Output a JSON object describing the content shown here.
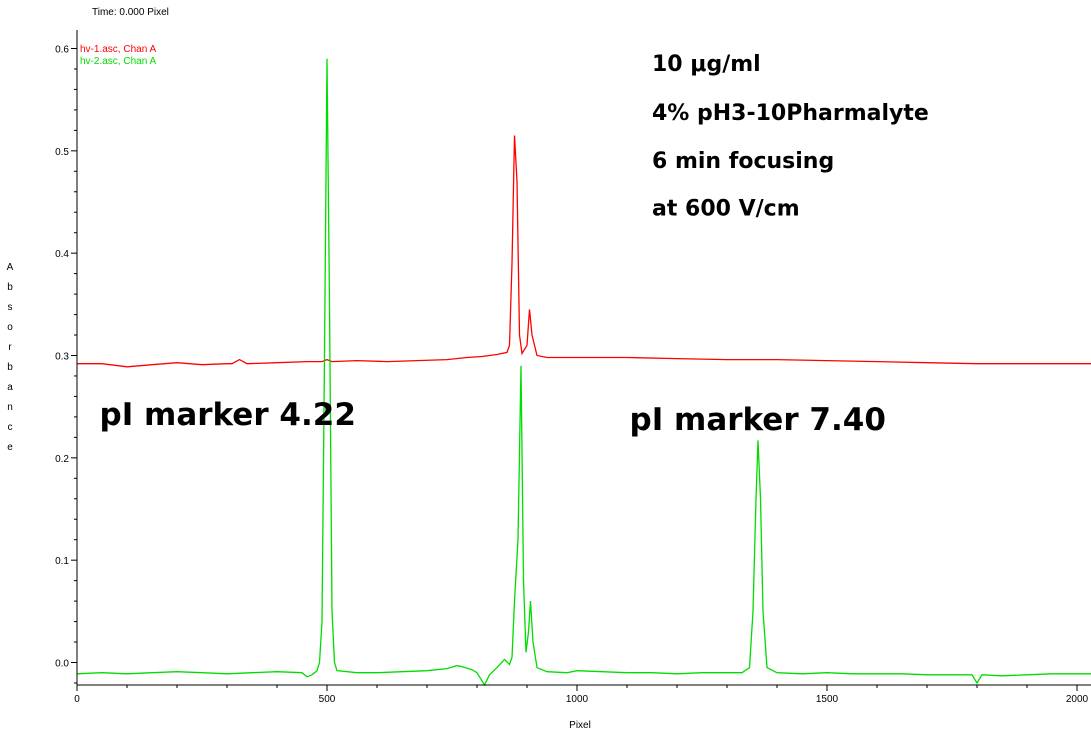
{
  "header": {
    "time_readout": "Time:  0.000 Pixel"
  },
  "chart_data": {
    "type": "line",
    "xlabel": "Pixel",
    "ylabel": "Absorbance",
    "xlim": [
      0,
      2050
    ],
    "ylim": [
      -0.03,
      0.61
    ],
    "x_ticks": [
      0,
      500,
      1000,
      1500,
      2000
    ],
    "x_tick_labels": [
      "0",
      "500",
      "1000",
      "1500",
      "2000"
    ],
    "y_ticks": [
      0.0,
      0.1,
      0.2,
      0.3,
      0.4,
      0.5,
      0.6
    ],
    "y_tick_labels": [
      "0.0",
      "0.1",
      "0.2",
      "0.3",
      "0.4",
      "0.5",
      "0.6"
    ],
    "grid": false,
    "legend": {
      "placement": "top-left"
    },
    "series": [
      {
        "name": "hv-1.asc, Chan A",
        "color": "#ff0000",
        "points": [
          [
            0,
            0.292
          ],
          [
            50,
            0.292
          ],
          [
            100,
            0.289
          ],
          [
            150,
            0.291
          ],
          [
            200,
            0.293
          ],
          [
            250,
            0.291
          ],
          [
            300,
            0.292
          ],
          [
            310,
            0.292
          ],
          [
            325,
            0.296
          ],
          [
            340,
            0.292
          ],
          [
            400,
            0.293
          ],
          [
            460,
            0.294
          ],
          [
            490,
            0.294
          ],
          [
            500,
            0.296
          ],
          [
            510,
            0.294
          ],
          [
            560,
            0.295
          ],
          [
            620,
            0.294
          ],
          [
            680,
            0.295
          ],
          [
            740,
            0.296
          ],
          [
            780,
            0.298
          ],
          [
            810,
            0.299
          ],
          [
            840,
            0.301
          ],
          [
            860,
            0.303
          ],
          [
            865,
            0.31
          ],
          [
            870,
            0.39
          ],
          [
            875,
            0.515
          ],
          [
            880,
            0.47
          ],
          [
            885,
            0.32
          ],
          [
            890,
            0.302
          ],
          [
            900,
            0.31
          ],
          [
            905,
            0.345
          ],
          [
            910,
            0.32
          ],
          [
            920,
            0.3
          ],
          [
            940,
            0.298
          ],
          [
            1000,
            0.298
          ],
          [
            1100,
            0.298
          ],
          [
            1200,
            0.297
          ],
          [
            1300,
            0.296
          ],
          [
            1400,
            0.296
          ],
          [
            1500,
            0.295
          ],
          [
            1600,
            0.294
          ],
          [
            1700,
            0.293
          ],
          [
            1800,
            0.292
          ],
          [
            1900,
            0.292
          ],
          [
            2000,
            0.292
          ],
          [
            2050,
            0.292
          ]
        ]
      },
      {
        "name": "hv-2.asc, Chan A",
        "color": "#00dd00",
        "points": [
          [
            0,
            -0.011
          ],
          [
            50,
            -0.01
          ],
          [
            100,
            -0.011
          ],
          [
            150,
            -0.01
          ],
          [
            200,
            -0.009
          ],
          [
            250,
            -0.01
          ],
          [
            300,
            -0.011
          ],
          [
            350,
            -0.01
          ],
          [
            400,
            -0.009
          ],
          [
            450,
            -0.01
          ],
          [
            460,
            -0.014
          ],
          [
            470,
            -0.012
          ],
          [
            480,
            -0.008
          ],
          [
            485,
            0.0
          ],
          [
            490,
            0.04
          ],
          [
            495,
            0.3
          ],
          [
            500,
            0.59
          ],
          [
            505,
            0.35
          ],
          [
            510,
            0.05
          ],
          [
            515,
            0.0
          ],
          [
            520,
            -0.008
          ],
          [
            560,
            -0.01
          ],
          [
            600,
            -0.01
          ],
          [
            650,
            -0.009
          ],
          [
            700,
            -0.008
          ],
          [
            740,
            -0.006
          ],
          [
            760,
            -0.003
          ],
          [
            770,
            -0.004
          ],
          [
            790,
            -0.007
          ],
          [
            800,
            -0.01
          ],
          [
            815,
            -0.022
          ],
          [
            825,
            -0.012
          ],
          [
            840,
            -0.005
          ],
          [
            855,
            0.003
          ],
          [
            865,
            -0.002
          ],
          [
            870,
            0.005
          ],
          [
            875,
            0.06
          ],
          [
            882,
            0.12
          ],
          [
            888,
            0.29
          ],
          [
            893,
            0.08
          ],
          [
            898,
            0.01
          ],
          [
            903,
            0.03
          ],
          [
            907,
            0.06
          ],
          [
            912,
            0.02
          ],
          [
            920,
            -0.005
          ],
          [
            940,
            -0.009
          ],
          [
            980,
            -0.01
          ],
          [
            1000,
            -0.008
          ],
          [
            1050,
            -0.009
          ],
          [
            1100,
            -0.01
          ],
          [
            1150,
            -0.01
          ],
          [
            1200,
            -0.011
          ],
          [
            1250,
            -0.01
          ],
          [
            1300,
            -0.01
          ],
          [
            1330,
            -0.01
          ],
          [
            1345,
            -0.005
          ],
          [
            1352,
            0.05
          ],
          [
            1358,
            0.16
          ],
          [
            1362,
            0.217
          ],
          [
            1367,
            0.16
          ],
          [
            1372,
            0.05
          ],
          [
            1380,
            -0.005
          ],
          [
            1400,
            -0.01
          ],
          [
            1450,
            -0.011
          ],
          [
            1500,
            -0.01
          ],
          [
            1550,
            -0.011
          ],
          [
            1600,
            -0.011
          ],
          [
            1650,
            -0.011
          ],
          [
            1700,
            -0.012
          ],
          [
            1750,
            -0.012
          ],
          [
            1790,
            -0.012
          ],
          [
            1800,
            -0.02
          ],
          [
            1810,
            -0.012
          ],
          [
            1850,
            -0.013
          ],
          [
            1900,
            -0.012
          ],
          [
            1950,
            -0.011
          ],
          [
            2000,
            -0.011
          ],
          [
            2050,
            -0.011
          ]
        ]
      }
    ],
    "annotations": [
      {
        "id": "conditions-1",
        "text": "10 μg/ml",
        "x": 1150,
        "y": 0.578
      },
      {
        "id": "conditions-2",
        "text": "4% pH3-10Pharmalyte",
        "x": 1150,
        "y": 0.53
      },
      {
        "id": "conditions-3",
        "text": "6 min focusing",
        "x": 1150,
        "y": 0.483
      },
      {
        "id": "conditions-4",
        "text": "at 600 V/cm",
        "x": 1150,
        "y": 0.437
      },
      {
        "id": "pi-marker-low",
        "text": "pI marker 4.22",
        "x": 45,
        "y": 0.232
      },
      {
        "id": "pi-marker-high",
        "text": "pI marker 7.40",
        "x": 1105,
        "y": 0.227
      }
    ]
  }
}
